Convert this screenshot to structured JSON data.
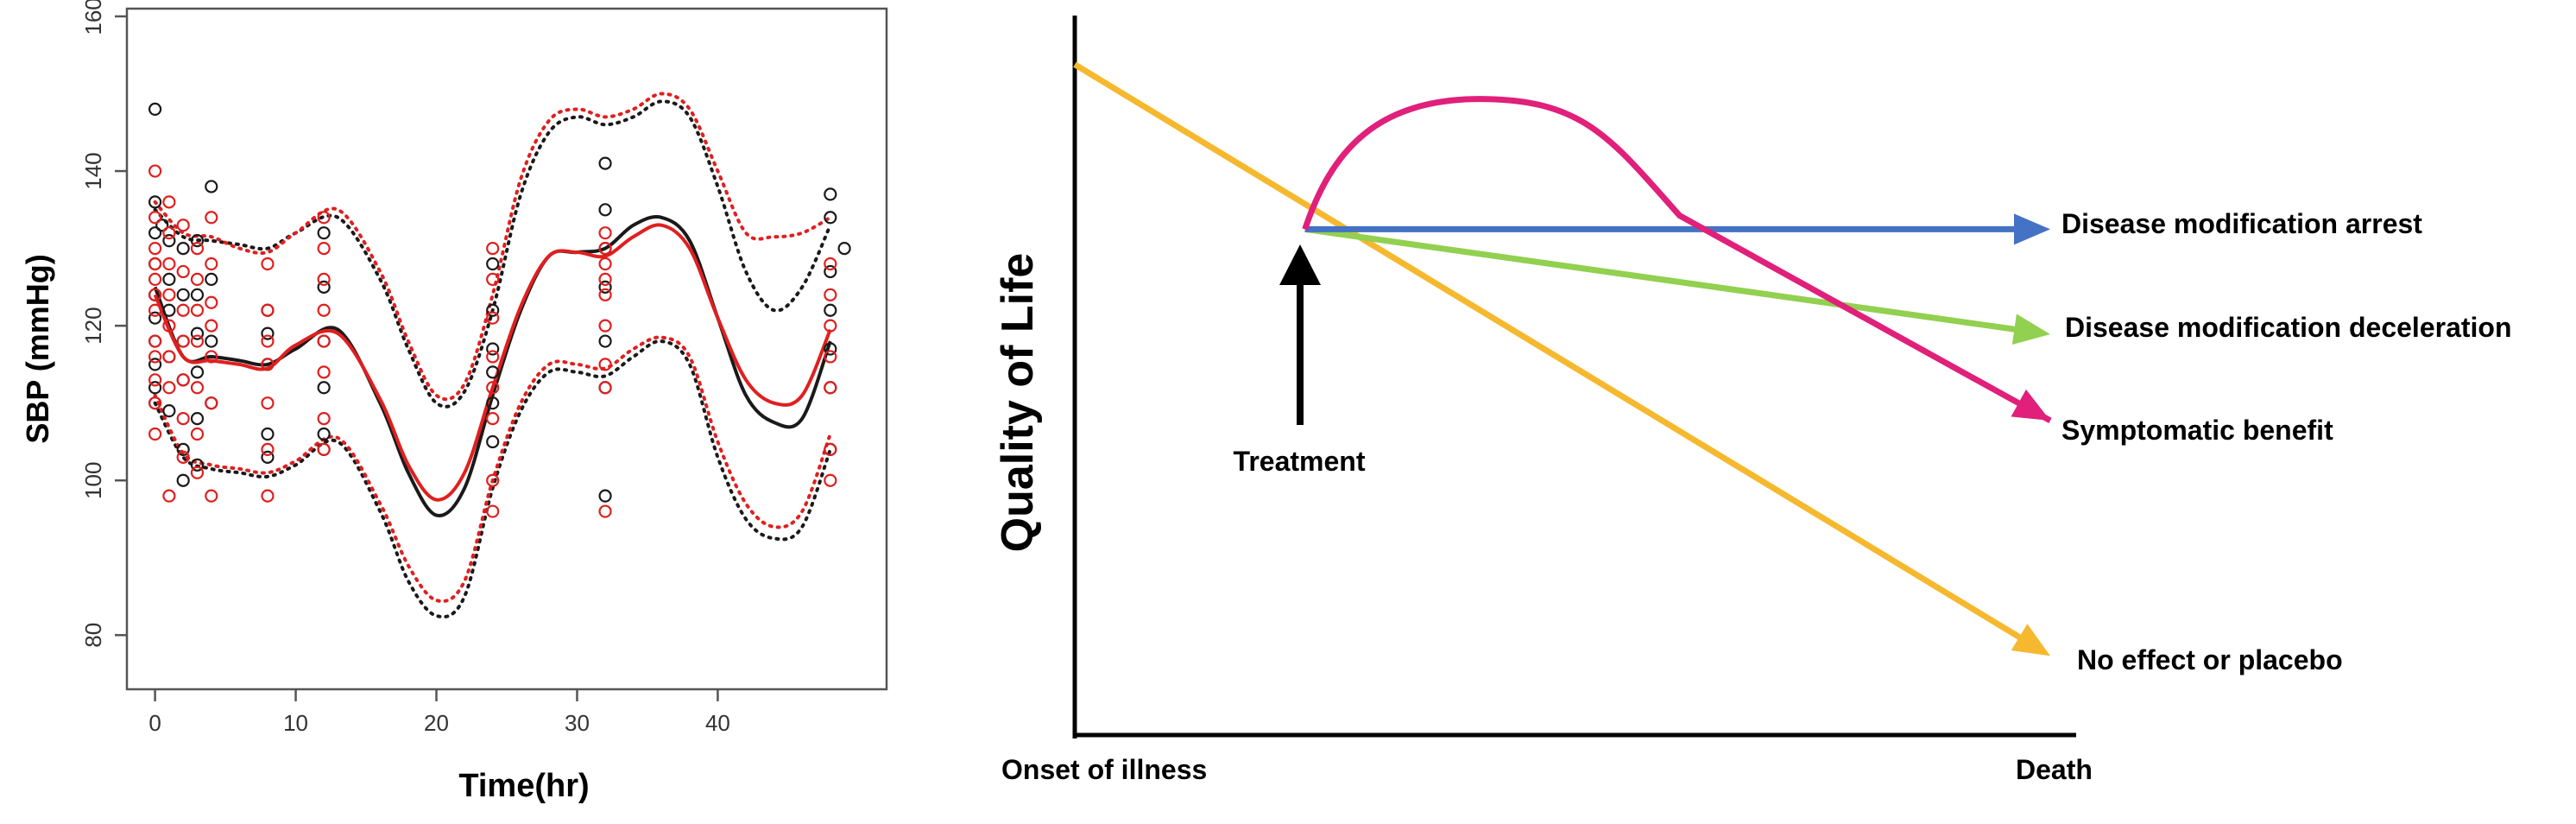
{
  "chart_data": [
    {
      "type": "scatter",
      "title": "",
      "xlabel": "Time(hr)",
      "ylabel": "SBP (mmHg)",
      "xlim": [
        -2,
        52
      ],
      "ylim": [
        73,
        161
      ],
      "xticks": [
        0,
        10,
        20,
        30,
        40
      ],
      "yticks": [
        80,
        100,
        120,
        140,
        160
      ],
      "grid": false,
      "legend": "none",
      "colors": {
        "group_a": "#1a1a1a",
        "group_b": "#e01f1f"
      },
      "series": [
        {
          "group": "group_a",
          "kind": "points",
          "x": [
            0,
            0,
            0,
            0,
            0,
            0,
            0,
            0,
            0,
            0,
            0.5,
            1,
            1,
            1,
            1,
            1,
            2,
            2,
            2,
            2,
            2,
            2,
            3,
            3,
            3,
            3,
            3,
            3,
            4,
            4,
            4,
            4,
            8,
            8,
            8,
            8,
            8,
            12,
            12,
            12,
            12,
            12,
            12,
            24,
            24,
            24,
            24,
            24,
            24,
            32,
            32,
            32,
            32,
            32,
            32,
            32,
            48,
            48,
            48,
            48,
            48,
            48,
            48,
            49
          ],
          "y": [
            148,
            136,
            132,
            128,
            124,
            121,
            118,
            115,
            112,
            110,
            133,
            131,
            126,
            122,
            116,
            109,
            130,
            124,
            118,
            113,
            104,
            100,
            131,
            124,
            119,
            114,
            108,
            102,
            138,
            126,
            118,
            110,
            122,
            119,
            115,
            106,
            103,
            132,
            125,
            118,
            112,
            106,
            104,
            128,
            122,
            117,
            114,
            110,
            105,
            141,
            135,
            130,
            125,
            118,
            112,
            98,
            137,
            134,
            127,
            122,
            117,
            112,
            104,
            130
          ]
        },
        {
          "group": "group_b",
          "kind": "points",
          "x": [
            0,
            0,
            0,
            0,
            0,
            0,
            0,
            0,
            0,
            0,
            0,
            0,
            1,
            1,
            1,
            1,
            1,
            1,
            1,
            1,
            2,
            2,
            2,
            2,
            2,
            2,
            2,
            3,
            3,
            3,
            3,
            3,
            3,
            3,
            4,
            4,
            4,
            4,
            4,
            4,
            4,
            8,
            8,
            8,
            8,
            8,
            8,
            8,
            12,
            12,
            12,
            12,
            12,
            12,
            12,
            12,
            24,
            24,
            24,
            24,
            24,
            24,
            24,
            24,
            32,
            32,
            32,
            32,
            32,
            32,
            32,
            32,
            32,
            48,
            48,
            48,
            48,
            48,
            48,
            48
          ],
          "y": [
            140,
            134,
            130,
            128,
            126,
            124,
            122,
            118,
            116,
            113,
            110,
            106,
            136,
            132,
            128,
            124,
            120,
            116,
            112,
            98,
            133,
            127,
            122,
            118,
            113,
            108,
            103,
            130,
            126,
            122,
            118,
            112,
            106,
            101,
            134,
            128,
            123,
            120,
            116,
            110,
            98,
            128,
            122,
            118,
            115,
            110,
            104,
            98,
            134,
            130,
            126,
            122,
            118,
            114,
            108,
            104,
            130,
            126,
            121,
            116,
            112,
            108,
            100,
            96,
            132,
            130,
            128,
            126,
            124,
            120,
            115,
            112,
            96,
            128,
            124,
            120,
            116,
            112,
            104,
            100
          ]
        },
        {
          "group": "group_a",
          "kind": "fit_line",
          "style": "solid",
          "x": [
            0,
            2,
            4,
            6,
            8,
            10,
            13,
            16,
            18,
            20,
            22,
            24,
            26,
            28,
            30,
            32,
            34,
            36,
            38,
            40,
            42,
            44,
            46,
            48
          ],
          "y": [
            125,
            116,
            116,
            115.5,
            115,
            117,
            119.5,
            110,
            101,
            95.5,
            99,
            111,
            122,
            129,
            129.5,
            130,
            133,
            134,
            131,
            121,
            111,
            107.5,
            108,
            118
          ]
        },
        {
          "group": "group_b",
          "kind": "fit_line",
          "style": "solid",
          "x": [
            0,
            2,
            4,
            6,
            8,
            10,
            13,
            16,
            18,
            20,
            22,
            24,
            26,
            28,
            30,
            32,
            34,
            36,
            38,
            40,
            42,
            44,
            46,
            48
          ],
          "y": [
            124,
            116,
            115.5,
            115,
            114.5,
            117.5,
            119,
            110.5,
            102,
            97.5,
            101,
            112,
            122.5,
            129,
            129.5,
            129,
            131.5,
            133,
            130,
            121,
            113,
            110,
            111,
            119.5
          ]
        },
        {
          "group": "group_a",
          "kind": "band_upper",
          "style": "dotted",
          "x": [
            0,
            2,
            4,
            6,
            8,
            10,
            13,
            16,
            18,
            20,
            22,
            24,
            26,
            28,
            30,
            32,
            34,
            36,
            38,
            40,
            42,
            44,
            46,
            48
          ],
          "y": [
            135,
            131.5,
            131,
            130.5,
            130,
            132,
            134,
            126,
            117,
            110,
            111.5,
            122,
            137,
            145,
            147,
            146,
            147,
            149,
            147,
            138,
            127,
            122,
            125,
            133
          ]
        },
        {
          "group": "group_b",
          "kind": "band_upper",
          "style": "dotted",
          "x": [
            0,
            2,
            4,
            6,
            8,
            10,
            13,
            16,
            18,
            20,
            22,
            24,
            26,
            28,
            30,
            32,
            34,
            36,
            38,
            40,
            42,
            44,
            46,
            48
          ],
          "y": [
            136,
            132,
            131.5,
            130,
            129.5,
            132,
            135,
            127,
            118,
            111,
            112.5,
            124,
            139,
            146.5,
            148,
            147,
            148,
            150,
            148,
            140,
            132,
            131.5,
            132,
            134
          ]
        },
        {
          "group": "group_a",
          "kind": "band_lower",
          "style": "dotted",
          "x": [
            0,
            2,
            4,
            6,
            8,
            10,
            13,
            16,
            18,
            20,
            22,
            24,
            26,
            28,
            30,
            32,
            34,
            36,
            38,
            40,
            42,
            44,
            46,
            48
          ],
          "y": [
            110,
            103,
            101.5,
            101,
            100.5,
            102,
            105,
            96,
            87,
            82.5,
            85,
            99,
            109,
            114,
            114,
            113.5,
            116,
            118,
            115,
            103,
            95,
            92.5,
            94,
            104
          ]
        },
        {
          "group": "group_b",
          "kind": "band_lower",
          "style": "dotted",
          "x": [
            0,
            2,
            4,
            6,
            8,
            10,
            13,
            16,
            18,
            20,
            22,
            24,
            26,
            28,
            30,
            32,
            34,
            36,
            38,
            40,
            42,
            44,
            46,
            48
          ],
          "y": [
            111,
            103.5,
            102,
            101.5,
            101,
            102.5,
            105.5,
            97,
            89,
            84.5,
            87,
            100,
            110,
            115,
            115,
            114.5,
            117,
            118.5,
            116,
            105,
            97,
            94,
            96,
            106
          ]
        }
      ]
    },
    {
      "type": "line",
      "title": "",
      "xlabel": "",
      "ylabel": "Quality of Life",
      "x_ticks": [
        "Onset of illness",
        "Death"
      ],
      "grid": false,
      "annotation": "Treatment",
      "series": [
        {
          "name": "Disease modification arrest",
          "color": "#4472c4",
          "points": [
            [
              0.236,
              0.703
            ],
            [
              1.0,
              0.703
            ]
          ]
        },
        {
          "name": "Disease modification deceleration",
          "color": "#92d050",
          "points": [
            [
              0.236,
              0.703
            ],
            [
              1.0,
              0.557
            ]
          ]
        },
        {
          "name": "Symptomatic benefit",
          "color": "#e0207a",
          "points": [
            [
              0.236,
              0.703
            ],
            [
              0.415,
              0.884
            ],
            [
              0.62,
              0.722
            ],
            [
              1.0,
              0.437
            ]
          ]
        },
        {
          "name": "No effect or placebo",
          "color": "#f5b82e",
          "points": [
            [
              0.0,
              0.932
            ],
            [
              1.0,
              0.11
            ]
          ]
        }
      ]
    }
  ]
}
